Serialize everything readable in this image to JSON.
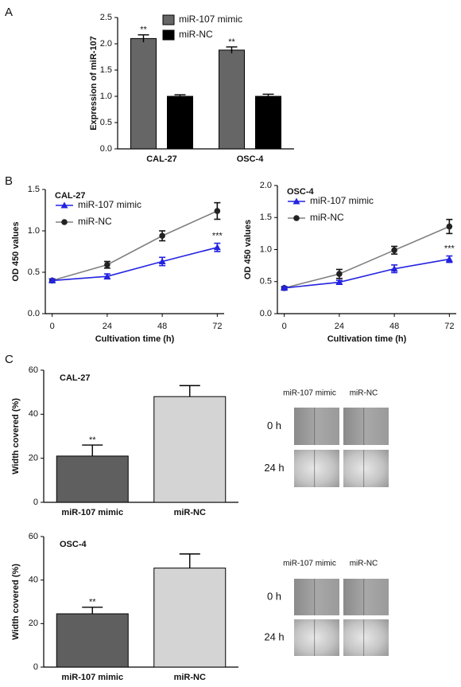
{
  "chart_data": [
    {
      "panel": "A",
      "type": "bar",
      "ylabel": "Expression of miR-107",
      "categories": [
        "CAL-27",
        "OSC-4"
      ],
      "ylim": [
        0,
        2.5
      ],
      "yticks": [
        {
          "value": 0,
          "label": "0.0"
        },
        0.5,
        {
          "value": 1,
          "label": "1.0"
        },
        1.5,
        {
          "value": 2,
          "label": "2.0"
        },
        2.5
      ],
      "legend": "upper right",
      "series": [
        {
          "name": "miR-107 mimic",
          "color": "#666666",
          "values": [
            2.1,
            1.88
          ],
          "errors": [
            0.07,
            0.06
          ],
          "annotations": [
            "**",
            "**"
          ]
        },
        {
          "name": "miR-NC",
          "color": "#000000",
          "values": [
            1.0,
            1.0
          ],
          "errors": [
            0.03,
            0.04
          ]
        }
      ]
    },
    {
      "panel": "B",
      "type": "line",
      "title": "CAL-27",
      "xlabel": "Cultivation time (h)",
      "ylabel": "OD 450 values",
      "x": [
        0,
        24,
        48,
        72
      ],
      "xlim": [
        -3,
        75
      ],
      "xticks": [
        0,
        24,
        48,
        72
      ],
      "ylim": [
        0,
        1.5
      ],
      "yticks": [
        {
          "value": 0,
          "label": "0.0"
        },
        0.5,
        {
          "value": 1,
          "label": "1.0"
        },
        1.5
      ],
      "legend": "upper left",
      "series": [
        {
          "name": "miR-107 mimic",
          "color": "#2323e0",
          "marker": "triangle",
          "values": [
            0.4,
            0.45,
            0.63,
            0.8
          ],
          "errors": [
            0.02,
            0.03,
            0.05,
            0.05
          ],
          "annotations": [
            null,
            null,
            null,
            "***"
          ]
        },
        {
          "name": "miR-NC",
          "color": "#808080",
          "marker": "circle",
          "values": [
            0.4,
            0.59,
            0.94,
            1.24
          ],
          "errors": [
            0.02,
            0.04,
            0.06,
            0.1
          ]
        }
      ]
    },
    {
      "type": "line",
      "title": "OSC-4",
      "xlabel": "Cultivation time (h)",
      "ylabel": "OD 450 values",
      "x": [
        0,
        24,
        48,
        72
      ],
      "xlim": [
        -3,
        75
      ],
      "xticks": [
        0,
        24,
        48,
        72
      ],
      "ylim": [
        0,
        2.0
      ],
      "yticks": [
        {
          "value": 0,
          "label": "0.0"
        },
        0.5,
        {
          "value": 1,
          "label": "1.0"
        },
        1.5,
        {
          "value": 2,
          "label": "2.0"
        }
      ],
      "legend": "upper left",
      "series": [
        {
          "name": "miR-107 mimic",
          "color": "#2323e0",
          "marker": "triangle",
          "values": [
            0.4,
            0.49,
            0.7,
            0.85
          ],
          "errors": [
            0.02,
            0.03,
            0.06,
            0.05
          ],
          "annotations": [
            null,
            null,
            null,
            "***"
          ]
        },
        {
          "name": "miR-NC",
          "color": "#808080",
          "marker": "circle",
          "values": [
            0.4,
            0.62,
            0.99,
            1.36
          ],
          "errors": [
            0.02,
            0.07,
            0.06,
            0.11
          ]
        }
      ]
    },
    {
      "panel": "C",
      "type": "bar",
      "title": "CAL-27",
      "ylabel": "Width covered (%)",
      "categories": [
        "miR-107 mimic",
        "miR-NC"
      ],
      "values": [
        21,
        48
      ],
      "errors": [
        5,
        5
      ],
      "colors": [
        "#5f5f5f",
        "#d4d4d4"
      ],
      "annotations": [
        "**",
        null
      ],
      "ylim": [
        0,
        60
      ],
      "yticks": [
        0,
        20,
        40,
        60
      ],
      "image_columns": [
        "miR-107 mimic",
        "miR-NC"
      ],
      "image_rows": [
        "0 h",
        "24 h"
      ]
    },
    {
      "type": "bar",
      "title": "OSC-4",
      "ylabel": "Width covered (%)",
      "categories": [
        "miR-107 mimic",
        "miR-NC"
      ],
      "values": [
        24.5,
        45.5
      ],
      "errors": [
        3,
        6.5
      ],
      "colors": [
        "#5f5f5f",
        "#d4d4d4"
      ],
      "annotations": [
        "**",
        null
      ],
      "ylim": [
        0,
        60
      ],
      "yticks": [
        0,
        20,
        40,
        60
      ],
      "image_columns": [
        "miR-107 mimic",
        "miR-NC"
      ],
      "image_rows": [
        "0 h",
        "24 h"
      ]
    }
  ]
}
